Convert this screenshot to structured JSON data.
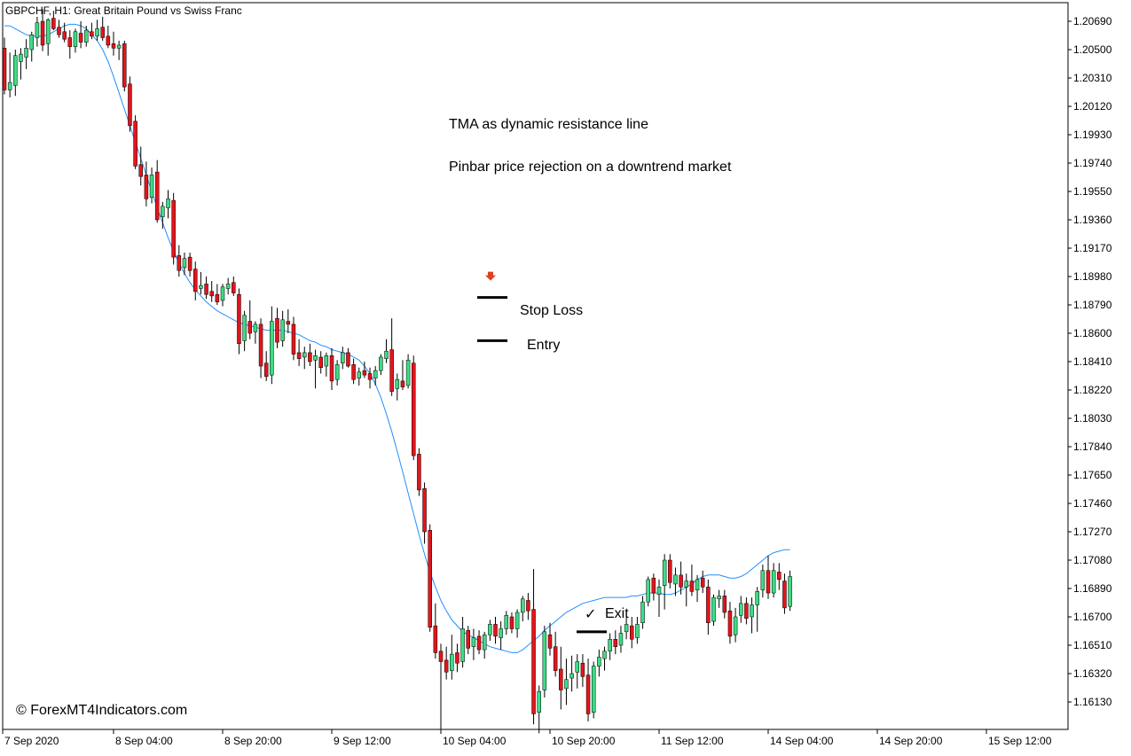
{
  "colors": {
    "background": "#ffffff",
    "bull": "#3ddc84",
    "bear": "#e4141b",
    "wick": "#000000",
    "tma_line": "#1e90ff",
    "stop_arrow": "#e0401f",
    "frame": "#000000"
  },
  "header": {
    "symbol_title": "GBPCHF, H1:  Great Britain Pound vs Swiss Franc"
  },
  "annotations": {
    "tma_note": "TMA as dynamic resistance line",
    "pinbar_note": "Pinbar price rejection on a downtrend market",
    "stop_loss_label": "Stop Loss",
    "entry_label": "Entry",
    "exit_label": "Exit",
    "exit_check": "✓",
    "watermark": "© ForexMT4Indicators.com"
  },
  "levels": {
    "stop_loss": 1.1884,
    "entry": 1.1855,
    "exit": 1.166
  },
  "chart_data": {
    "type": "candlestick",
    "symbol": "GBPCHF",
    "timeframe": "H1",
    "title": "GBPCHF, H1:  Great Britain Pound vs Swiss Franc",
    "ylim": [
      1.16,
      1.2084
    ],
    "y_ticks": [
      "1.20690",
      "1.20500",
      "1.20310",
      "1.20120",
      "1.19930",
      "1.19740",
      "1.19550",
      "1.19360",
      "1.19170",
      "1.18980",
      "1.18790",
      "1.18600",
      "1.18410",
      "1.18220",
      "1.18030",
      "1.17840",
      "1.17650",
      "1.17460",
      "1.17270",
      "1.17080",
      "1.16890",
      "1.16700",
      "1.16510",
      "1.16320",
      "1.16130"
    ],
    "x_ticks": [
      {
        "label": "7 Sep 2020",
        "bar": 0
      },
      {
        "label": "8 Sep 04:00",
        "bar": 20
      },
      {
        "label": "8 Sep 20:00",
        "bar": 40
      },
      {
        "label": "9 Sep 12:00",
        "bar": 60
      },
      {
        "label": "10 Sep 04:00",
        "bar": 80
      },
      {
        "label": "10 Sep 20:00",
        "bar": 100
      },
      {
        "label": "11 Sep 12:00",
        "bar": 120
      },
      {
        "label": "14 Sep 04:00",
        "bar": 140
      },
      {
        "label": "14 Sep 20:00",
        "bar": 160
      },
      {
        "label": "15 Sep 12:00",
        "bar": 180
      }
    ],
    "grid": false,
    "series": [
      {
        "kind": "ohlc",
        "candles": [
          [
            1.2051,
            1.2058,
            1.202,
            1.2023
          ],
          [
            1.2023,
            1.2048,
            1.2018,
            1.2028
          ],
          [
            1.2026,
            1.205,
            1.2019,
            1.2046
          ],
          [
            1.2042,
            1.2051,
            1.203,
            1.2047
          ],
          [
            1.2045,
            1.2057,
            1.2037,
            1.2051
          ],
          [
            1.205,
            1.2062,
            1.2042,
            1.206
          ],
          [
            1.2058,
            1.2072,
            1.2052,
            1.2068
          ],
          [
            1.2069,
            1.2077,
            1.2049,
            1.2053
          ],
          [
            1.2054,
            1.2071,
            1.2046,
            1.207
          ],
          [
            1.2071,
            1.2076,
            1.2063,
            1.2064
          ],
          [
            1.2065,
            1.207,
            1.2058,
            1.206
          ],
          [
            1.2062,
            1.2068,
            1.2055,
            1.2057
          ],
          [
            1.2058,
            1.2063,
            1.2044,
            1.2052
          ],
          [
            1.2052,
            1.2064,
            1.2048,
            1.2062
          ],
          [
            1.2061,
            1.2069,
            1.2051,
            1.2055
          ],
          [
            1.2055,
            1.2066,
            1.2052,
            1.2063
          ],
          [
            1.2062,
            1.2068,
            1.2057,
            1.2059
          ],
          [
            1.2059,
            1.207,
            1.2056,
            1.2064
          ],
          [
            1.2065,
            1.2072,
            1.2056,
            1.2058
          ],
          [
            1.2059,
            1.2066,
            1.2051,
            1.2053
          ],
          [
            1.2054,
            1.2062,
            1.2046,
            1.2051
          ],
          [
            1.2051,
            1.2056,
            1.2043,
            1.2053
          ],
          [
            1.2054,
            1.2056,
            1.2022,
            1.2025
          ],
          [
            1.2027,
            1.2032,
            1.1995,
            1.1999
          ],
          [
            1.2002,
            1.2006,
            1.197,
            1.1972
          ],
          [
            1.1973,
            1.1985,
            1.1959,
            1.1965
          ],
          [
            1.1966,
            1.1975,
            1.1945,
            1.195
          ],
          [
            1.1951,
            1.1971,
            1.1947,
            1.1966
          ],
          [
            1.1968,
            1.1976,
            1.1934,
            1.1936
          ],
          [
            1.1938,
            1.1948,
            1.193,
            1.1945
          ],
          [
            1.1944,
            1.1956,
            1.1937,
            1.195
          ],
          [
            1.1949,
            1.1954,
            1.1906,
            1.1911
          ],
          [
            1.1912,
            1.1919,
            1.1898,
            1.1902
          ],
          [
            1.1904,
            1.1914,
            1.1899,
            1.191
          ],
          [
            1.1911,
            1.1914,
            1.1898,
            1.1902
          ],
          [
            1.1903,
            1.1908,
            1.1882,
            1.1888
          ],
          [
            1.189,
            1.1901,
            1.1886,
            1.1892
          ],
          [
            1.1893,
            1.1898,
            1.1883,
            1.1886
          ],
          [
            1.1888,
            1.1895,
            1.1881,
            1.1885
          ],
          [
            1.1886,
            1.1893,
            1.1879,
            1.1881
          ],
          [
            1.1882,
            1.1893,
            1.1878,
            1.1891
          ],
          [
            1.189,
            1.1897,
            1.1886,
            1.1893
          ],
          [
            1.1894,
            1.1898,
            1.1885,
            1.1887
          ],
          [
            1.1886,
            1.189,
            1.1846,
            1.1853
          ],
          [
            1.1855,
            1.1875,
            1.1848,
            1.1872
          ],
          [
            1.1868,
            1.1882,
            1.1856,
            1.186
          ],
          [
            1.1861,
            1.1868,
            1.1853,
            1.1866
          ],
          [
            1.1866,
            1.187,
            1.183,
            1.1838
          ],
          [
            1.184,
            1.1848,
            1.1828,
            1.1831
          ],
          [
            1.1832,
            1.1878,
            1.1826,
            1.1868
          ],
          [
            1.187,
            1.1877,
            1.185,
            1.1854
          ],
          [
            1.1855,
            1.1875,
            1.1851,
            1.1869
          ],
          [
            1.1868,
            1.1876,
            1.186,
            1.1866
          ],
          [
            1.1866,
            1.1871,
            1.1842,
            1.1846
          ],
          [
            1.1847,
            1.1856,
            1.1838,
            1.1843
          ],
          [
            1.1844,
            1.1851,
            1.1836,
            1.1847
          ],
          [
            1.1847,
            1.1853,
            1.1838,
            1.1841
          ],
          [
            1.1842,
            1.1849,
            1.1823,
            1.1845
          ],
          [
            1.1844,
            1.1848,
            1.1833,
            1.1837
          ],
          [
            1.1838,
            1.1847,
            1.1831,
            1.1845
          ],
          [
            1.1845,
            1.185,
            1.1822,
            1.1828
          ],
          [
            1.1829,
            1.1842,
            1.1825,
            1.1839
          ],
          [
            1.184,
            1.1851,
            1.1836,
            1.1847
          ],
          [
            1.1847,
            1.185,
            1.1837,
            1.1838
          ],
          [
            1.1839,
            1.1843,
            1.1826,
            1.1829
          ],
          [
            1.183,
            1.1837,
            1.1825,
            1.1834
          ],
          [
            1.1835,
            1.1841,
            1.183,
            1.1832
          ],
          [
            1.1833,
            1.1837,
            1.1823,
            1.1829
          ],
          [
            1.183,
            1.1838,
            1.1825,
            1.1835
          ],
          [
            1.1835,
            1.1846,
            1.1832,
            1.1844
          ],
          [
            1.1843,
            1.1856,
            1.184,
            1.1848
          ],
          [
            1.1849,
            1.187,
            1.1818,
            1.1821
          ],
          [
            1.1823,
            1.1833,
            1.1815,
            1.1829
          ],
          [
            1.1828,
            1.1842,
            1.1822,
            1.1824
          ],
          [
            1.1825,
            1.1846,
            1.1823,
            1.1842
          ],
          [
            1.184,
            1.1845,
            1.1775,
            1.1778
          ],
          [
            1.1779,
            1.1783,
            1.1751,
            1.1755
          ],
          [
            1.1756,
            1.176,
            1.1719,
            1.1727
          ],
          [
            1.1728,
            1.1732,
            1.166,
            1.1663
          ],
          [
            1.1664,
            1.1679,
            1.1642,
            1.1646
          ],
          [
            1.1647,
            1.1652,
            1.1595,
            1.164
          ],
          [
            1.1641,
            1.165,
            1.1628,
            1.1633
          ],
          [
            1.1634,
            1.1658,
            1.1628,
            1.1645
          ],
          [
            1.1646,
            1.1652,
            1.1633,
            1.1639
          ],
          [
            1.164,
            1.167,
            1.1636,
            1.1662
          ],
          [
            1.1661,
            1.1664,
            1.1645,
            1.1649
          ],
          [
            1.165,
            1.1662,
            1.1641,
            1.1656
          ],
          [
            1.1657,
            1.1661,
            1.1645,
            1.1648
          ],
          [
            1.1648,
            1.166,
            1.1642,
            1.1658
          ],
          [
            1.1658,
            1.1668,
            1.1654,
            1.1665
          ],
          [
            1.1665,
            1.167,
            1.1652,
            1.1657
          ],
          [
            1.1656,
            1.1667,
            1.1648,
            1.1662
          ],
          [
            1.1662,
            1.1674,
            1.1658,
            1.1671
          ],
          [
            1.167,
            1.1673,
            1.1659,
            1.1662
          ],
          [
            1.1662,
            1.1675,
            1.1656,
            1.1673
          ],
          [
            1.1673,
            1.1684,
            1.1667,
            1.1682
          ],
          [
            1.1681,
            1.1686,
            1.1668,
            1.1674
          ],
          [
            1.1675,
            1.1702,
            1.1598,
            1.1605
          ],
          [
            1.1606,
            1.1624,
            1.1592,
            1.162
          ],
          [
            1.1621,
            1.1664,
            1.1616,
            1.166
          ],
          [
            1.1658,
            1.1666,
            1.1644,
            1.1649
          ],
          [
            1.165,
            1.166,
            1.163,
            1.1634
          ],
          [
            1.1635,
            1.165,
            1.1608,
            1.1621
          ],
          [
            1.1622,
            1.1642,
            1.1611,
            1.1628
          ],
          [
            1.1629,
            1.1644,
            1.162,
            1.1632
          ],
          [
            1.1633,
            1.1645,
            1.1622,
            1.164
          ],
          [
            1.1639,
            1.1645,
            1.1623,
            1.163
          ],
          [
            1.1631,
            1.1642,
            1.16,
            1.1605
          ],
          [
            1.1606,
            1.164,
            1.1602,
            1.1637
          ],
          [
            1.1637,
            1.1648,
            1.163,
            1.1643
          ],
          [
            1.1642,
            1.165,
            1.1634,
            1.1647
          ],
          [
            1.1647,
            1.1659,
            1.1641,
            1.1655
          ],
          [
            1.1655,
            1.1661,
            1.1645,
            1.165
          ],
          [
            1.1651,
            1.1664,
            1.1646,
            1.1659
          ],
          [
            1.166,
            1.1671,
            1.1655,
            1.1665
          ],
          [
            1.1664,
            1.167,
            1.1649,
            1.1655
          ],
          [
            1.1656,
            1.167,
            1.1652,
            1.1665
          ],
          [
            1.1666,
            1.1684,
            1.1662,
            1.168
          ],
          [
            1.168,
            1.1697,
            1.1677,
            1.1695
          ],
          [
            1.1696,
            1.1699,
            1.1681,
            1.1686
          ],
          [
            1.1685,
            1.1695,
            1.167,
            1.169
          ],
          [
            1.1691,
            1.1712,
            1.1675,
            1.1708
          ],
          [
            1.1708,
            1.1712,
            1.1689,
            1.1693
          ],
          [
            1.1692,
            1.1703,
            1.1684,
            1.1698
          ],
          [
            1.1698,
            1.1707,
            1.1685,
            1.169
          ],
          [
            1.169,
            1.1699,
            1.1677,
            1.1694
          ],
          [
            1.1694,
            1.1705,
            1.1684,
            1.1687
          ],
          [
            1.1688,
            1.1698,
            1.168,
            1.1695
          ],
          [
            1.1696,
            1.1701,
            1.1686,
            1.169
          ],
          [
            1.169,
            1.1695,
            1.1658,
            1.1666
          ],
          [
            1.1667,
            1.1685,
            1.1664,
            1.1683
          ],
          [
            1.1682,
            1.1688,
            1.1676,
            1.1684
          ],
          [
            1.1684,
            1.1688,
            1.1669,
            1.1673
          ],
          [
            1.1674,
            1.168,
            1.1652,
            1.1657
          ],
          [
            1.1658,
            1.1676,
            1.1653,
            1.167
          ],
          [
            1.1671,
            1.1684,
            1.1666,
            1.1679
          ],
          [
            1.1679,
            1.1683,
            1.1665,
            1.1669
          ],
          [
            1.167,
            1.1683,
            1.1659,
            1.1678
          ],
          [
            1.1678,
            1.169,
            1.166,
            1.1687
          ],
          [
            1.1688,
            1.1705,
            1.1683,
            1.1701
          ],
          [
            1.1701,
            1.1711,
            1.1682,
            1.1686
          ],
          [
            1.1686,
            1.1706,
            1.1683,
            1.1701
          ],
          [
            1.17,
            1.1706,
            1.1688,
            1.1695
          ],
          [
            1.1694,
            1.1699,
            1.1672,
            1.1676
          ],
          [
            1.1677,
            1.1701,
            1.1674,
            1.1697
          ]
        ]
      },
      {
        "kind": "line",
        "name": "",
        "values": [
          1.2066,
          1.2066,
          1.2064,
          1.2062,
          1.206,
          1.2059,
          1.2059,
          1.2059,
          1.206,
          1.2062,
          1.2064,
          1.2066,
          1.2067,
          1.2067,
          1.2066,
          1.2064,
          1.206,
          1.2056,
          1.205,
          1.2042,
          1.2032,
          1.2021,
          1.201,
          1.1999,
          1.1988,
          1.1977,
          1.1966,
          1.1955,
          1.1944,
          1.1934,
          1.1924,
          1.1915,
          1.1907,
          1.19,
          1.1894,
          1.1889,
          1.1885,
          1.1881,
          1.1878,
          1.1875,
          1.1873,
          1.1871,
          1.1869,
          1.1867,
          1.1866,
          1.1865,
          1.1864,
          1.1863,
          1.1862,
          1.1862,
          1.1862,
          1.1862,
          1.1861,
          1.186,
          1.1859,
          1.1857,
          1.1855,
          1.1854,
          1.1852,
          1.1851,
          1.1849,
          1.1848,
          1.1847,
          1.1846,
          1.1844,
          1.1842,
          1.1838,
          1.1833,
          1.1826,
          1.1817,
          1.1806,
          1.1794,
          1.1781,
          1.1767,
          1.1753,
          1.1739,
          1.1725,
          1.1712,
          1.17,
          1.169,
          1.1681,
          1.1674,
          1.1668,
          1.1664,
          1.166,
          1.1658,
          1.1656,
          1.1654,
          1.1652,
          1.165,
          1.1649,
          1.1648,
          1.1647,
          1.1646,
          1.1646,
          1.1648,
          1.1651,
          1.1654,
          1.1657,
          1.1661,
          1.1664,
          1.1667,
          1.167,
          1.1673,
          1.1675,
          1.1677,
          1.1679,
          1.168,
          1.1681,
          1.1682,
          1.1683,
          1.1683,
          1.1683,
          1.1683,
          1.1683,
          1.1684,
          1.1684,
          1.1685,
          1.1686,
          1.1686,
          1.1686,
          1.1685,
          1.1685,
          1.1686,
          1.1688,
          1.169,
          1.1692,
          1.1695,
          1.1697,
          1.1698,
          1.1698,
          1.1698,
          1.1697,
          1.1696,
          1.1696,
          1.1697,
          1.1699,
          1.1702,
          1.1705,
          1.1708,
          1.1711,
          1.1713,
          1.1714,
          1.1715,
          1.1715
        ]
      }
    ]
  }
}
